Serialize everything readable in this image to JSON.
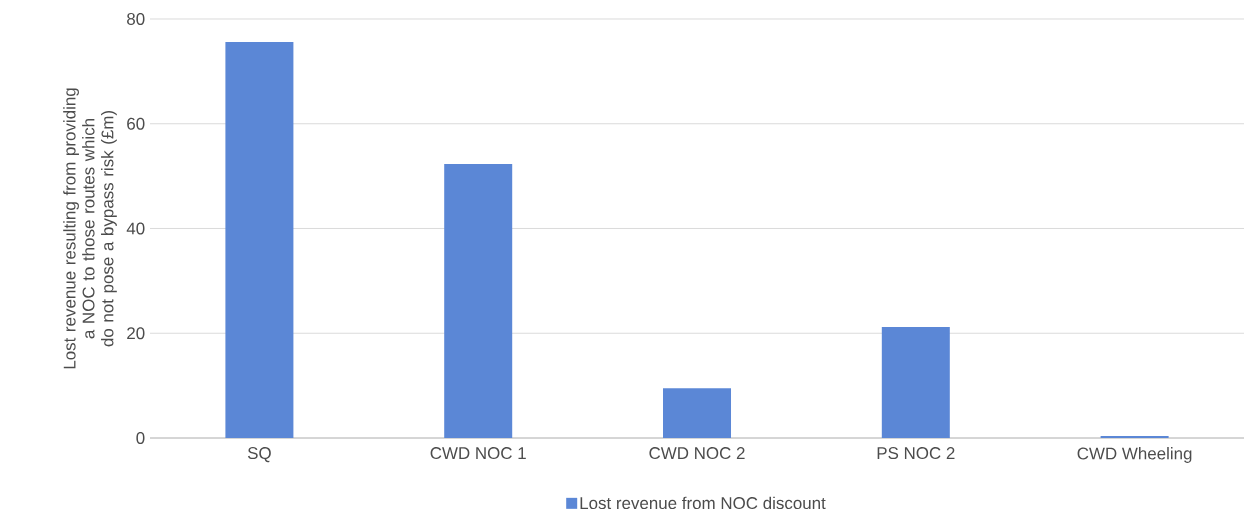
{
  "chart_data": {
    "type": "bar",
    "ylabel": "Lost revenue resulting from providing a NOC to those routes which do not pose a bypass risk (£m)",
    "categories": [
      "SQ",
      "CWD NOC 1",
      "CWD NOC 2",
      "PS NOC 2",
      "CWD Wheeling"
    ],
    "series": [
      {
        "name": "Lost revenue from NOC discount",
        "color": "#5b87d6",
        "values": [
          75.6,
          52.3,
          9.5,
          21.2,
          0.4
        ]
      }
    ],
    "ylim": [
      0,
      80
    ],
    "yticks": [
      0,
      20,
      40,
      60,
      80
    ],
    "grid": "y",
    "legend": "bottom"
  }
}
